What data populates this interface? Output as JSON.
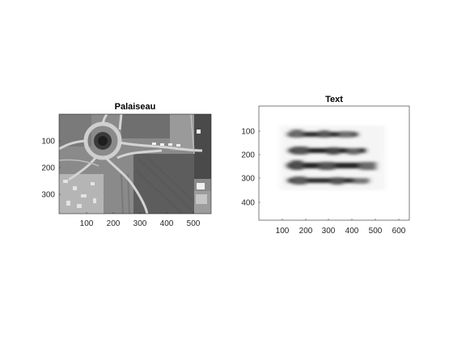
{
  "figure": {
    "panels": [
      {
        "id": "left",
        "title": "Palaiseau",
        "x_ticks": [
          "100",
          "200",
          "300",
          "400",
          "500"
        ],
        "y_ticks": [
          "100",
          "200",
          "300"
        ]
      },
      {
        "id": "right",
        "title": "Text",
        "x_ticks": [
          "100",
          "200",
          "300",
          "400",
          "500",
          "600"
        ],
        "y_ticks": [
          "100",
          "200",
          "300",
          "400"
        ]
      }
    ]
  }
}
